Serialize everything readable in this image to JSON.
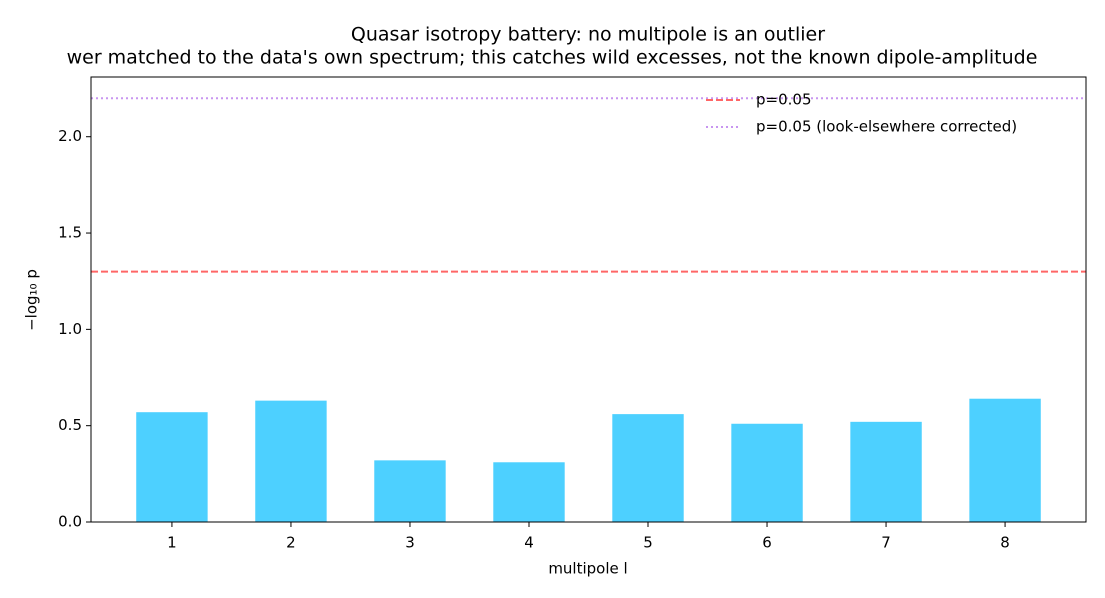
{
  "chart_data": {
    "type": "bar",
    "title": "Quasar isotropy battery: no multipole is an outlier",
    "subtitle": "wer matched to the data's own spectrum; this catches wild excesses, not the known dipole-amplitude",
    "x_label": "multipole  l",
    "y_label": "−log₁₀ p",
    "x": [
      1,
      2,
      3,
      4,
      5,
      6,
      7,
      8
    ],
    "values": [
      0.57,
      0.63,
      0.32,
      0.31,
      0.56,
      0.51,
      0.52,
      0.64
    ],
    "color": "#4dd0ff",
    "xlim": [
      0.32,
      8.68
    ],
    "xticks": [
      1,
      2,
      3,
      4,
      5,
      6,
      7,
      8
    ],
    "ylim": [
      0,
      2.31
    ],
    "yticks": [
      {
        "value": 0,
        "label": "0.0"
      },
      {
        "value": 0.5,
        "label": "0.5"
      },
      {
        "value": 1,
        "label": "1.0"
      },
      {
        "value": 1.5,
        "label": "1.5"
      },
      {
        "value": 2,
        "label": "2.0"
      }
    ],
    "reference_lines": [
      {
        "name": "p=0.05",
        "value": 1.3,
        "color": "#ff6666",
        "style": "dashed"
      },
      {
        "name": "p=0.05 (look-elsewhere corrected)",
        "value": 2.2,
        "color": "#c896f0",
        "style": "dotted"
      }
    ],
    "legend": "upper right"
  }
}
